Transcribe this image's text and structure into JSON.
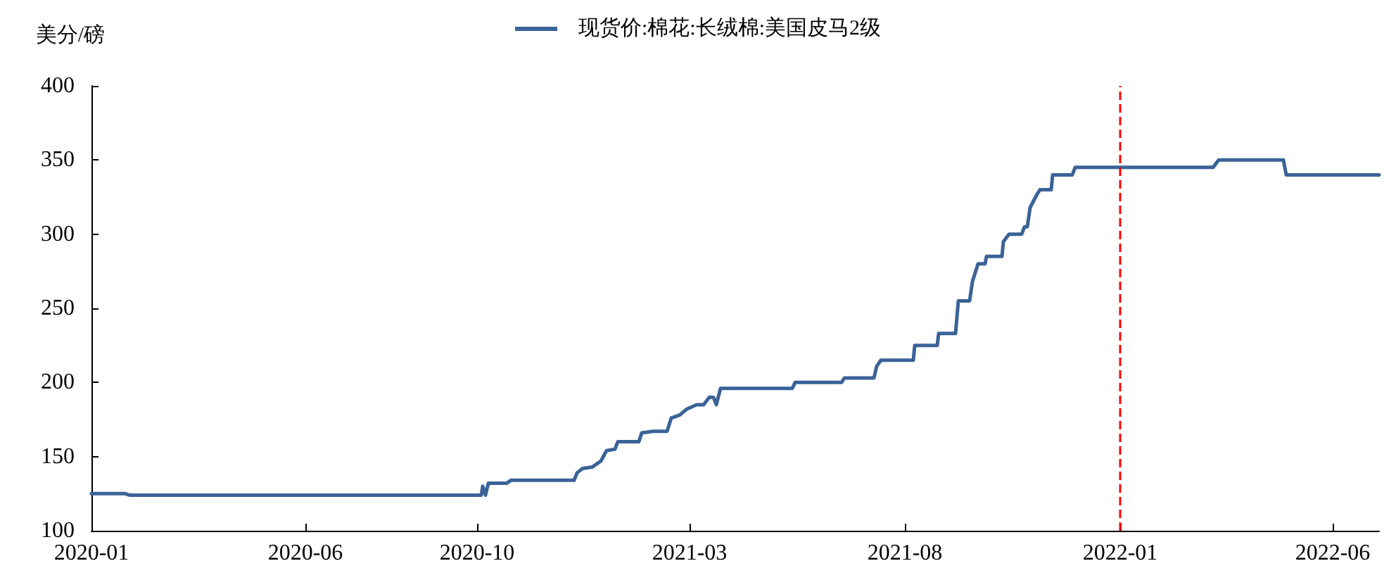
{
  "chart_data": {
    "type": "line",
    "ylabel": "美分/磅",
    "legend": "top",
    "grid": false,
    "marker": "none",
    "line_style": "solid",
    "xlim": [
      "2020-01-01",
      "2022-07-04"
    ],
    "xticks": [
      "2020-01",
      "2020-06",
      "2020-10",
      "2021-03",
      "2021-08",
      "2022-01",
      "2022-06"
    ],
    "ylim": [
      100,
      400
    ],
    "yticks": [
      100,
      150,
      200,
      250,
      300,
      350,
      400
    ],
    "ref_lines": [
      {
        "axis": "x",
        "value": "2022-01-01",
        "color": "#ff0000",
        "line_style": "dashed"
      }
    ],
    "series": [
      {
        "name": "现货价:棉花:长绒棉:美国皮马2级",
        "color": "#3a6397",
        "x": [
          "2020-01-01",
          "2020-01-25",
          "2020-01-28",
          "2020-10-04",
          "2020-10-05",
          "2020-10-07",
          "2020-10-09",
          "2020-10-22",
          "2020-10-25",
          "2020-12-09",
          "2020-12-11",
          "2020-12-15",
          "2020-12-22",
          "2020-12-28",
          "2021-01-01",
          "2021-01-07",
          "2021-01-09",
          "2021-01-24",
          "2021-01-26",
          "2021-02-03",
          "2021-02-13",
          "2021-02-16",
          "2021-02-22",
          "2021-02-27",
          "2021-03-06",
          "2021-03-11",
          "2021-03-15",
          "2021-03-18",
          "2021-03-20",
          "2021-03-23",
          "2021-05-13",
          "2021-05-15",
          "2021-06-17",
          "2021-06-19",
          "2021-07-10",
          "2021-07-12",
          "2021-07-15",
          "2021-08-07",
          "2021-08-08",
          "2021-08-24",
          "2021-08-25",
          "2021-09-06",
          "2021-09-08",
          "2021-09-16",
          "2021-09-18",
          "2021-09-22",
          "2021-09-27",
          "2021-09-28",
          "2021-10-09",
          "2021-10-10",
          "2021-10-14",
          "2021-10-23",
          "2021-10-25",
          "2021-10-27",
          "2021-10-29",
          "2021-11-03",
          "2021-11-05",
          "2021-11-13",
          "2021-11-14",
          "2021-11-28",
          "2021-11-30",
          "2022-03-08",
          "2022-03-12",
          "2022-04-27",
          "2022-04-29",
          "2022-07-04"
        ],
        "values": [
          125,
          125,
          124,
          124,
          130,
          124,
          132,
          132,
          134,
          134,
          139,
          142,
          143,
          147,
          154,
          155,
          160,
          160,
          166,
          167,
          167,
          176,
          178,
          182,
          185,
          185,
          190,
          190,
          185,
          196,
          196,
          200,
          200,
          203,
          203,
          211,
          215,
          215,
          225,
          225,
          233,
          233,
          255,
          255,
          268,
          280,
          280,
          285,
          285,
          295,
          300,
          300,
          305,
          305,
          318,
          327,
          330,
          330,
          340,
          340,
          345,
          345,
          350,
          350,
          340,
          340
        ]
      }
    ]
  }
}
